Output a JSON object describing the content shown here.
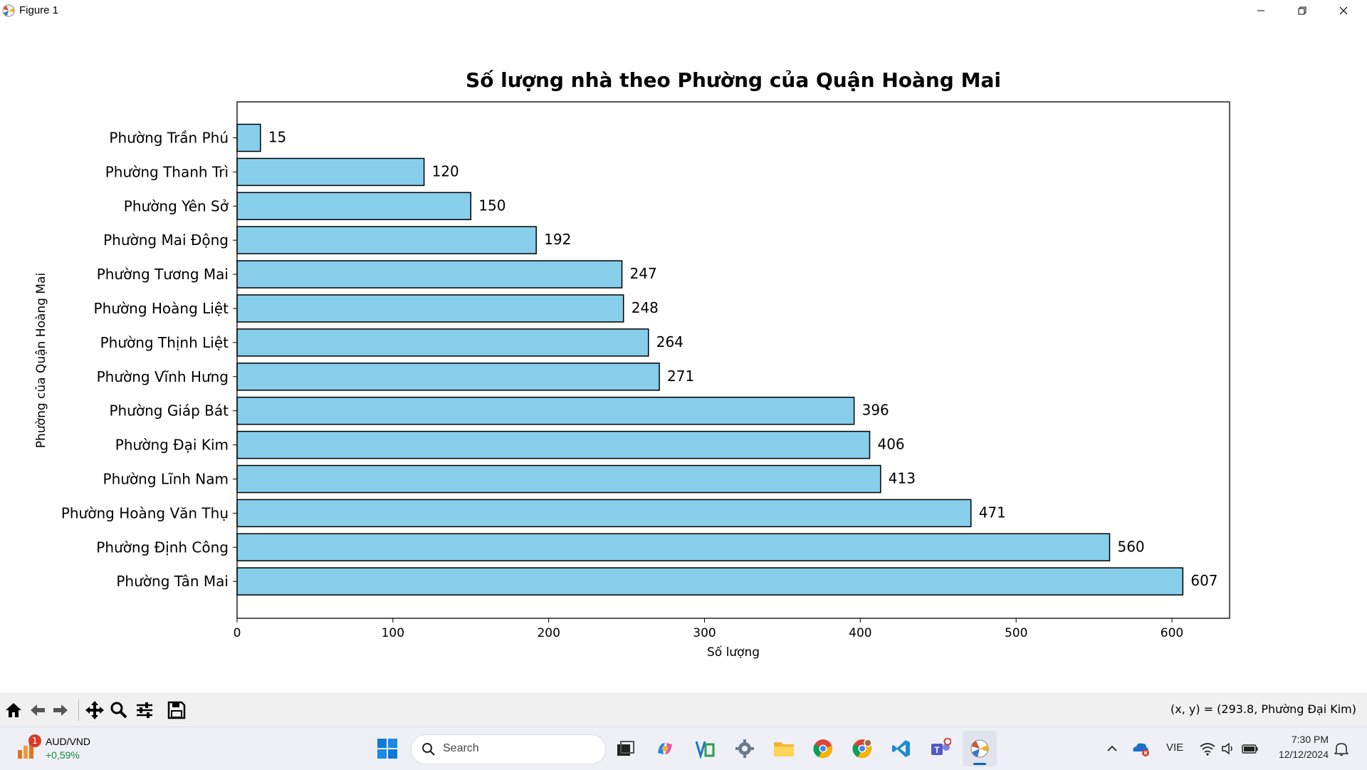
{
  "window": {
    "title": "Figure 1"
  },
  "chart_data": {
    "type": "bar",
    "orientation": "horizontal",
    "title": "Số lượng nhà theo Phường của Quận Hoàng Mai",
    "xlabel": "Số lượng",
    "ylabel": "Phường của Quận Hoàng Mai",
    "categories": [
      "Phường Trần Phú",
      "Phường Thanh Trì",
      "Phường Yên Sở",
      "Phường Mai Động",
      "Phường Tương Mai",
      "Phường Hoàng Liệt",
      "Phường Thịnh Liệt",
      "Phường Vĩnh Hưng",
      "Phường Giáp Bát",
      "Phường Đại Kim",
      "Phường Lĩnh Nam",
      "Phường Hoàng Văn Thụ",
      "Phường Định Công",
      "Phường Tân Mai"
    ],
    "values": [
      15,
      120,
      150,
      192,
      247,
      248,
      264,
      271,
      396,
      406,
      413,
      471,
      560,
      607
    ],
    "xticks": [
      "0",
      "100",
      "200",
      "300",
      "400",
      "500",
      "600"
    ],
    "xlim": [
      0,
      637
    ],
    "bar_color": "#87ceeb",
    "edge_color": "#000000",
    "grid": false
  },
  "toolbar": {
    "coords_text": "(x, y) = (293.8, Phường Đại Kim)"
  },
  "taskbar": {
    "widget_title": "AUD/VND",
    "widget_change": "+0,59%",
    "widget_badge": "1",
    "search_placeholder": "Search",
    "language": "VIE",
    "time": "7:30 PM",
    "date": "12/12/2024",
    "accent": "#0067c0"
  }
}
